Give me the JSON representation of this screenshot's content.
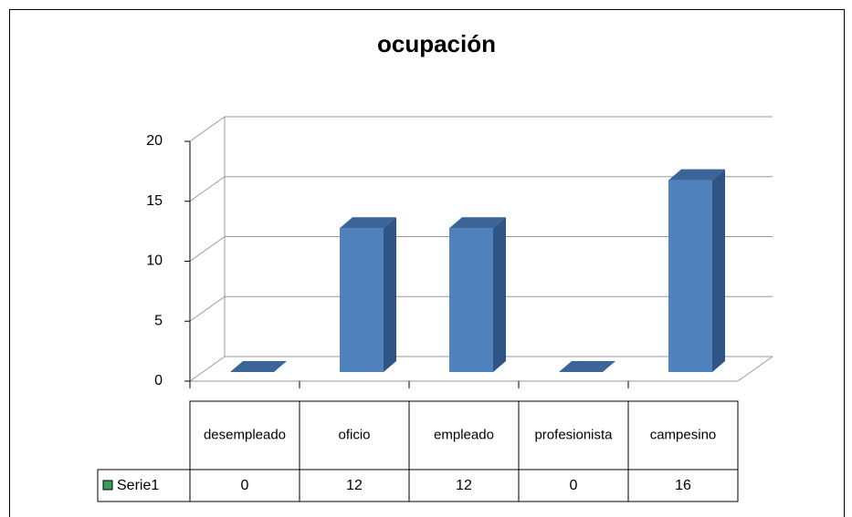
{
  "chart_data": {
    "type": "bar3d",
    "title": "ocupación",
    "categories": [
      "desempleado",
      "oficio",
      "empleado",
      "profesionista",
      "campesino"
    ],
    "series": [
      {
        "name": "Serie1",
        "color": "#4f81bd",
        "key_color": "#3a9a5c",
        "values": [
          0,
          12,
          12,
          0,
          16
        ]
      }
    ],
    "ylim": [
      0,
      20
    ],
    "yticks": [
      0,
      5,
      10,
      15,
      20
    ],
    "grid": true,
    "data_table": true
  }
}
